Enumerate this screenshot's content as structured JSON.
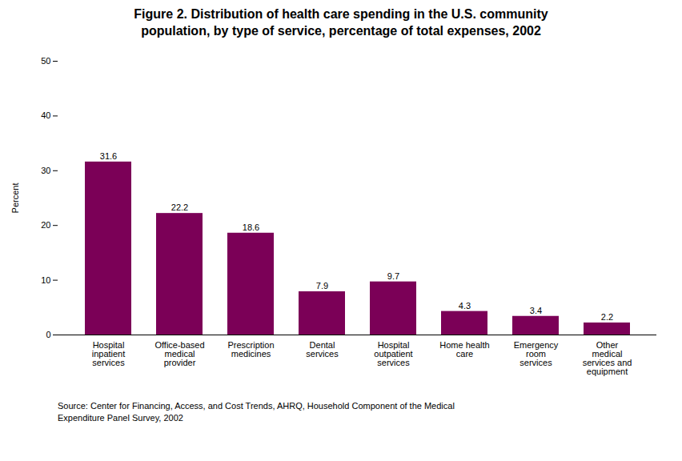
{
  "chart_data": {
    "type": "bar",
    "title": "Figure 2.  Distribution of health care spending in the U.S. community\npopulation, by type of service, percentage of total expenses, 2002",
    "categories": [
      "Hospital\ninpatient\nservices",
      "Office-based\nmedical\nprovider",
      "Prescription\nmedicines",
      "Dental\nservices",
      "Hospital\noutpatient\nservices",
      "Home health\ncare",
      "Emergency\nroom\nservices",
      "Other\nmedical\nservices and\nequipment"
    ],
    "values": [
      31.6,
      22.2,
      18.6,
      7.9,
      9.7,
      4.3,
      3.4,
      2.2
    ],
    "color": "#7b0057",
    "ylabel": "Percent",
    "ylim": [
      0,
      50
    ],
    "yticks": [
      0,
      10,
      20,
      30,
      40,
      50
    ],
    "grid": false,
    "data_labels": true,
    "annotations": [
      "Source: Center for Financing, Access, and Cost Trends, AHRQ, Household Component of the Medical\nExpenditure Panel Survey, 2002"
    ]
  }
}
